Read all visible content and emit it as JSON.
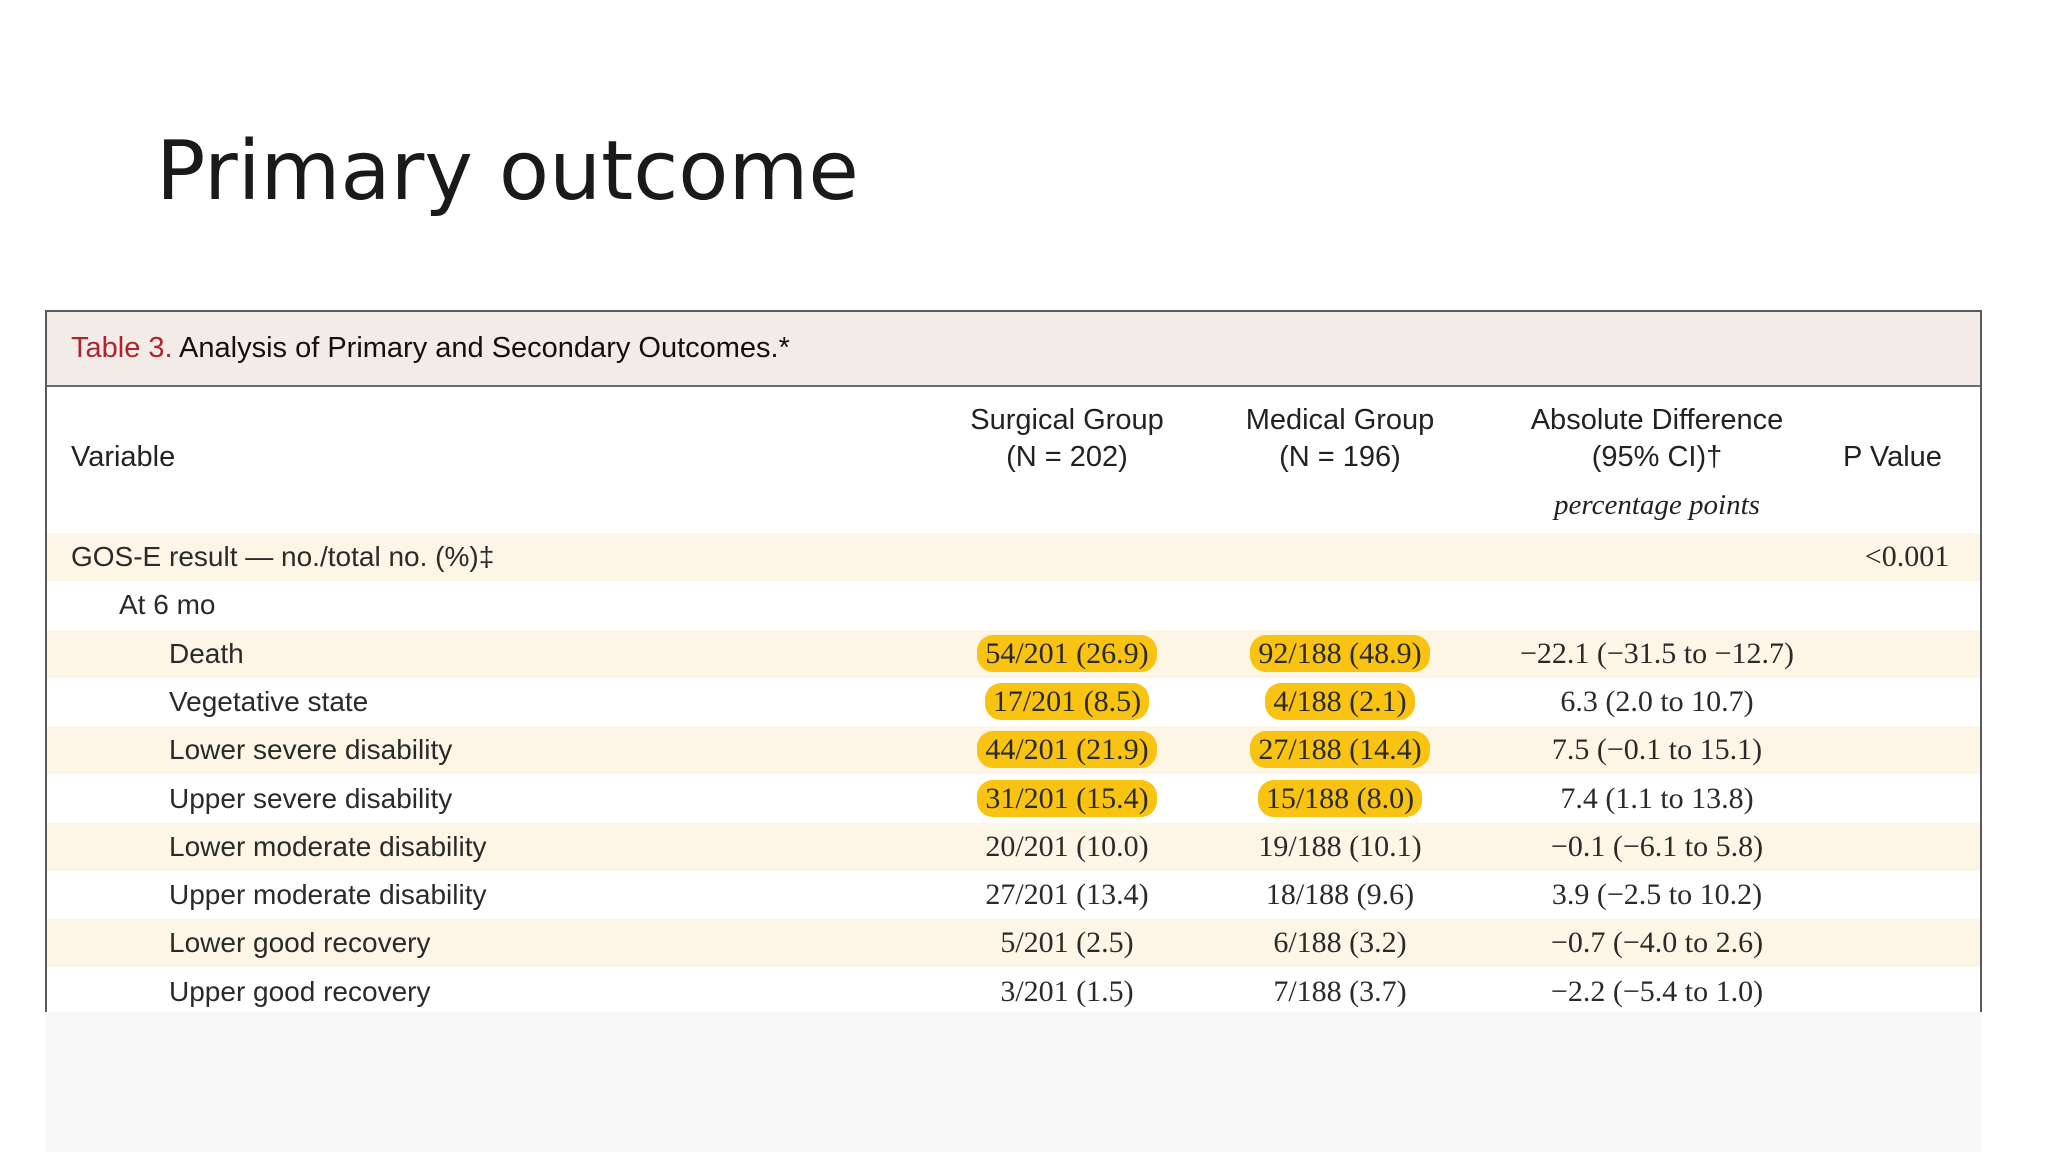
{
  "slide": {
    "title": "Primary outcome"
  },
  "table": {
    "caption_label": "Table 3.",
    "caption_text": " Analysis of Primary and Secondary Outcomes.*",
    "headers": {
      "variable": "Variable",
      "surgical_line1": "Surgical Group",
      "surgical_line2": "(N = 202)",
      "medical_line1": "Medical Group",
      "medical_line2": "(N = 196)",
      "diff_line1": "Absolute Difference",
      "diff_line2": "(95% CI)†",
      "diff_units": "percentage points",
      "pvalue": "P Value"
    },
    "rows": [
      {
        "variable": "GOS-E result — no./total no. (%)‡",
        "surgical": "",
        "medical": "",
        "difference": "",
        "pvalue": "<0.001",
        "indent": 0,
        "highlight": false
      },
      {
        "variable": "At 6 mo",
        "surgical": "",
        "medical": "",
        "difference": "",
        "pvalue": "",
        "indent": 1,
        "highlight": false
      },
      {
        "variable": "Death",
        "surgical": "54/201 (26.9)",
        "medical": "92/188 (48.9)",
        "difference": "−22.1 (−31.5 to −12.7)",
        "pvalue": "",
        "indent": 2,
        "highlight": true
      },
      {
        "variable": "Vegetative state",
        "surgical": "17/201 (8.5)",
        "medical": "4/188 (2.1)",
        "difference": "6.3 (2.0 to 10.7)",
        "pvalue": "",
        "indent": 2,
        "highlight": true
      },
      {
        "variable": "Lower severe disability",
        "surgical": "44/201 (21.9)",
        "medical": "27/188 (14.4)",
        "difference": "7.5 (−0.1 to 15.1)",
        "pvalue": "",
        "indent": 2,
        "highlight": true
      },
      {
        "variable": "Upper severe disability",
        "surgical": "31/201 (15.4)",
        "medical": "15/188 (8.0)",
        "difference": "7.4 (1.1 to 13.8)",
        "pvalue": "",
        "indent": 2,
        "highlight": true
      },
      {
        "variable": "Lower moderate disability",
        "surgical": "20/201 (10.0)",
        "medical": "19/188 (10.1)",
        "difference": "−0.1 (−6.1 to 5.8)",
        "pvalue": "",
        "indent": 2,
        "highlight": false
      },
      {
        "variable": "Upper moderate disability",
        "surgical": "27/201 (13.4)",
        "medical": "18/188 (9.6)",
        "difference": "3.9 (−2.5 to 10.2)",
        "pvalue": "",
        "indent": 2,
        "highlight": false
      },
      {
        "variable": "Lower good recovery",
        "surgical": "5/201 (2.5)",
        "medical": "6/188 (3.2)",
        "difference": "−0.7 (−4.0 to 2.6)",
        "pvalue": "",
        "indent": 2,
        "highlight": false
      },
      {
        "variable": "Upper good recovery",
        "surgical": "3/201 (1.5)",
        "medical": "7/188 (3.7)",
        "difference": "−2.2 (−5.4 to 1.0)",
        "pvalue": "",
        "indent": 2,
        "highlight": false
      }
    ]
  }
}
